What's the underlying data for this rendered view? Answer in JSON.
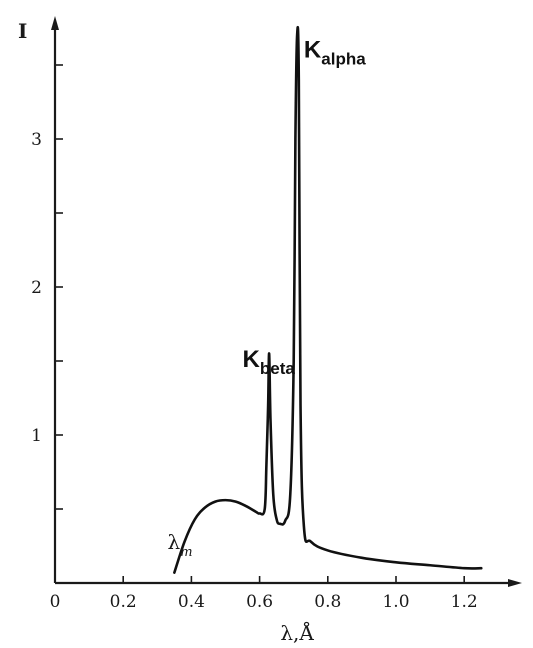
{
  "chart_data": {
    "type": "line",
    "title": "",
    "ylabel": "I",
    "xlabel_main": "λ,",
    "xlabel_unit": "Å",
    "xlim": [
      0,
      1.3
    ],
    "ylim": [
      0,
      3.8
    ],
    "x_ticks": [
      0,
      0.2,
      0.4,
      0.6,
      0.8,
      1.0,
      1.2
    ],
    "x_tick_labels": [
      "0",
      "0.2",
      "0.4",
      "0.6",
      "0.8",
      "1.0",
      "1.2"
    ],
    "y_ticks": [
      0.5,
      1,
      1.5,
      2,
      2.5,
      3,
      3.5
    ],
    "y_tick_labels": [
      "",
      "1",
      "",
      "2",
      "",
      "3",
      ""
    ],
    "grid": false,
    "series": [
      {
        "x": [
          0.35,
          0.38,
          0.41,
          0.44,
          0.47,
          0.5,
          0.53,
          0.56,
          0.59,
          0.6,
          0.615,
          0.62,
          0.625,
          0.628,
          0.632,
          0.64,
          0.65,
          0.66,
          0.675,
          0.69,
          0.7,
          0.705,
          0.71,
          0.715,
          0.72,
          0.73,
          0.75,
          0.8,
          0.9,
          1.0,
          1.1,
          1.2,
          1.25
        ],
        "y": [
          0.07,
          0.28,
          0.43,
          0.51,
          0.55,
          0.56,
          0.55,
          0.52,
          0.48,
          0.47,
          0.5,
          0.8,
          1.2,
          1.55,
          1.1,
          0.6,
          0.43,
          0.4,
          0.42,
          0.6,
          1.5,
          3.0,
          3.7,
          3.4,
          1.2,
          0.38,
          0.28,
          0.22,
          0.17,
          0.14,
          0.12,
          0.1,
          0.1
        ]
      }
    ],
    "annotations": [
      {
        "text": "λ",
        "sub": "m",
        "x": 0.33,
        "y": 0.23
      },
      {
        "text": "K",
        "sub": "beta",
        "x": 0.55,
        "y": 1.46
      },
      {
        "text": "K",
        "sub": "alpha",
        "x": 0.73,
        "y": 3.55
      }
    ]
  }
}
